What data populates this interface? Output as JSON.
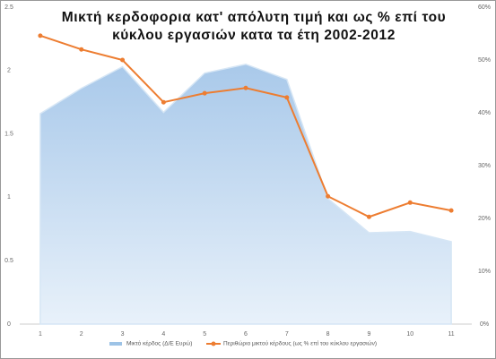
{
  "chart_data": {
    "type": "area-line",
    "title": [
      "Μικτή κερδοφορια κατ' απόλυτη τιμή και ως % επί του",
      "κύκλου εργασιών κατα τα έτη 2002-2012"
    ],
    "categories": [
      "1",
      "2",
      "3",
      "4",
      "5",
      "6",
      "7",
      "8",
      "9",
      "10",
      "11"
    ],
    "series": [
      {
        "name": "Μικτό κέρδος (Δ/Ε Ευρώ)",
        "type": "area",
        "color": "#9dc3e6",
        "values": [
          1.66,
          1.86,
          2.03,
          1.67,
          1.98,
          2.05,
          1.93,
          0.99,
          0.72,
          0.73,
          0.65
        ]
      },
      {
        "name": "Περιθώριο μικτού κέρδους (ως % επί του κύκλου εργασιών)",
        "type": "line",
        "axis": "y2",
        "color": "#ed7d31",
        "values": [
          54.6,
          52.0,
          50.0,
          42.0,
          43.7,
          44.7,
          42.9,
          24.2,
          20.3,
          23.0,
          21.5
        ]
      }
    ],
    "ylim": [
      0,
      2.5
    ],
    "yticks": [
      0,
      0.5,
      1,
      1.5,
      2,
      2.5
    ],
    "y2lim": [
      0,
      60
    ],
    "y2ticks": [
      {
        "value": 0,
        "label": "0%"
      },
      {
        "value": 10,
        "label": "10%"
      },
      {
        "value": 20,
        "label": "20%"
      },
      {
        "value": 30,
        "label": "30%"
      },
      {
        "value": 40,
        "label": "40%"
      },
      {
        "value": 50,
        "label": "50%"
      },
      {
        "value": 60,
        "label": "60%"
      }
    ],
    "grid": false,
    "legend": "bottom"
  }
}
